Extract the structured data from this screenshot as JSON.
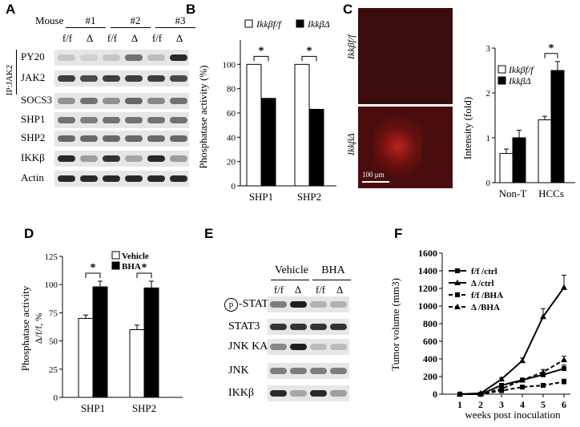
{
  "panelA": {
    "letter": "A",
    "mouse_label": "Mouse",
    "mice": [
      "#1",
      "#2",
      "#3"
    ],
    "lanes": [
      "f/f",
      "Δ",
      "f/f",
      "Δ",
      "f/f",
      "Δ"
    ],
    "ip_label": "IP:JAK2",
    "rows": [
      "PY20",
      "JAK2",
      "SOCS3",
      "SHP1",
      "SHP2",
      "IKKβ",
      "Actin"
    ]
  },
  "panelB": {
    "letter": "B",
    "legend": [
      "Ikkβf/f",
      "IkkβΔ"
    ],
    "chart_data": {
      "type": "bar",
      "categories": [
        "SHP1",
        "SHP2"
      ],
      "series": [
        {
          "name": "Ikkβ f/f",
          "values": [
            100,
            100
          ]
        },
        {
          "name": "Ikkβ Δ",
          "values": [
            72,
            63
          ]
        }
      ],
      "ylabel": "Phosphatase activity (%)",
      "ylim": [
        0,
        120
      ],
      "yticks": [
        0,
        20,
        40,
        60,
        80,
        100
      ],
      "significance": [
        "*",
        "*"
      ]
    }
  },
  "panelC": {
    "letter": "C",
    "image_labels": [
      "Ikkβf/f",
      "IkkβΔ"
    ],
    "scalebar": "100 μm",
    "legend": [
      "Ikkβf/f",
      "IkkβΔ"
    ],
    "chart_data": {
      "type": "bar",
      "categories": [
        "Non-T",
        "HCCs"
      ],
      "series": [
        {
          "name": "Ikkβ f/f",
          "values": [
            0.65,
            1.4
          ]
        },
        {
          "name": "Ikkβ Δ",
          "values": [
            1.0,
            2.5
          ]
        }
      ],
      "errors": [
        [
          0.1,
          0.08
        ],
        [
          0.17,
          0.2
        ]
      ],
      "ylabel": "Intensity (fold)",
      "ylim": [
        0,
        3
      ],
      "yticks": [
        0,
        1,
        2,
        3
      ],
      "significance": [
        "",
        "*"
      ]
    }
  },
  "panelD": {
    "letter": "D",
    "legend": [
      "Vehicle",
      "BHA"
    ],
    "chart_data": {
      "type": "bar",
      "categories": [
        "SHP1",
        "SHP2"
      ],
      "series": [
        {
          "name": "Vehicle",
          "values": [
            70,
            60
          ]
        },
        {
          "name": "BHA",
          "values": [
            98,
            97
          ]
        }
      ],
      "errors": [
        [
          3,
          4
        ],
        [
          5,
          6
        ]
      ],
      "ylabel": "Phosphatase activity",
      "ylabel2": "Δ/f/f, %",
      "ylim": [
        0,
        125
      ],
      "yticks": [
        0,
        25,
        50,
        75,
        100,
        125
      ],
      "significance": [
        "*",
        "*"
      ]
    }
  },
  "panelE": {
    "letter": "E",
    "groups": [
      "Vehicle",
      "BHA"
    ],
    "lanes": [
      "f/f",
      "Δ",
      "f/f",
      "Δ"
    ],
    "p_symbol": "p",
    "rows": [
      "-STAT3",
      "STAT3",
      "JNK KA",
      "JNK",
      "IKKβ"
    ]
  },
  "panelF": {
    "letter": "F",
    "chart_data": {
      "type": "line",
      "x": [
        1,
        2,
        3,
        4,
        5,
        6
      ],
      "series": [
        {
          "name": "f/f /ctrl",
          "values": [
            0,
            0,
            100,
            160,
            220,
            290
          ],
          "error": [
            0,
            0,
            10,
            20,
            25,
            40
          ]
        },
        {
          "name": "Δ /ctrl",
          "values": [
            0,
            10,
            170,
            380,
            880,
            1210
          ],
          "error": [
            0,
            0,
            15,
            30,
            90,
            140
          ]
        },
        {
          "name": "f/f /BHA",
          "values": [
            0,
            0,
            40,
            80,
            100,
            140
          ],
          "error": [
            0,
            0,
            8,
            15,
            15,
            30
          ]
        },
        {
          "name": "Δ /BHA",
          "values": [
            0,
            0,
            60,
            160,
            250,
            390
          ],
          "error": [
            0,
            0,
            10,
            20,
            30,
            40
          ]
        }
      ],
      "xlabel": "weeks post inoculation",
      "ylabel": "Tumor volume (mm3)",
      "xticks": [
        1,
        2,
        3,
        4,
        5,
        6
      ],
      "ylim": [
        0,
        1600
      ],
      "yticks": [
        0,
        200,
        400,
        600,
        800,
        1000,
        1200,
        1400,
        1600
      ]
    }
  }
}
